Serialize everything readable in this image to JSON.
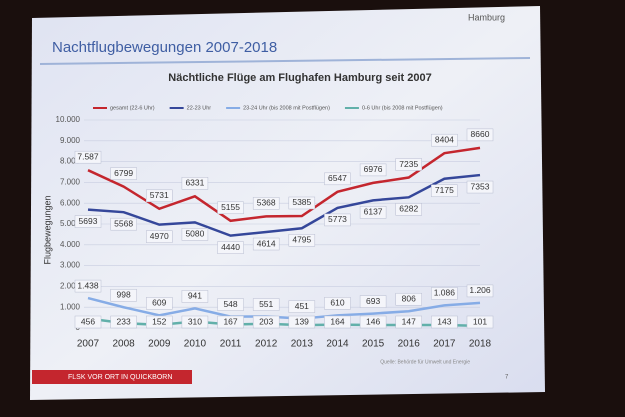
{
  "slide": {
    "heading": "Nachtflugbewegungen 2007-2018",
    "logo": "Hamburg",
    "footer": "FLSK VOR ORT IN QUICKBORN",
    "page_number": "7",
    "source": "Quelle: Behörde für Umwelt und Energie"
  },
  "chart_data": {
    "type": "line",
    "title": "Nächtliche Flüge am Flughafen Hamburg seit 2007",
    "y_label": "Flugbewegungen",
    "categories": [
      "2007",
      "2008",
      "2009",
      "2010",
      "2011",
      "2012",
      "2013",
      "2014",
      "2015",
      "2016",
      "2017",
      "2018"
    ],
    "ylim": [
      0,
      10000
    ],
    "yticks": [
      0,
      {
        "value": 1000,
        "label": "1.000"
      },
      {
        "value": 2000,
        "label": "2.000"
      },
      {
        "value": 3000,
        "label": "3.000"
      },
      {
        "value": 4000,
        "label": "4.000"
      },
      {
        "value": 5000,
        "label": "5.000"
      },
      {
        "value": 6000,
        "label": "6.000"
      },
      {
        "value": 7000,
        "label": "7.000"
      },
      {
        "value": 8000,
        "label": "8.000"
      },
      {
        "value": 9000,
        "label": "9.000"
      },
      {
        "value": 10000,
        "label": "10.000"
      }
    ],
    "legend_position": "top",
    "series": [
      {
        "name": "gesamt (22-6 Uhr)",
        "color": "#c4262e",
        "values": [
          7587,
          6799,
          5731,
          6331,
          5155,
          5368,
          5385,
          6547,
          6976,
          7235,
          8404,
          8660
        ],
        "value_labels": [
          "7.587",
          "6799",
          "5731",
          "6331",
          "5155",
          "5368",
          "5385",
          "6547",
          "6976",
          "7235",
          "8404",
          "8660"
        ]
      },
      {
        "name": "22-23 Uhr",
        "color": "#35479a",
        "values": [
          5693,
          5568,
          4970,
          5080,
          4440,
          4614,
          4795,
          5773,
          6137,
          6282,
          7175,
          7353
        ]
      },
      {
        "name": "23-24 Uhr (bis 2008 mit Postflügen)",
        "color": "#86ace6",
        "values": [
          1438,
          998,
          609,
          941,
          548,
          551,
          451,
          610,
          693,
          806,
          1086,
          1206
        ],
        "value_labels": [
          "1.438",
          "998",
          "609",
          "941",
          "548",
          "551",
          "451",
          "610",
          "693",
          "806",
          "1.086",
          "1.206"
        ]
      },
      {
        "name": "0-6 Uhr (bis 2008 mit Postflügen)",
        "color": "#62b0aa",
        "values": [
          456,
          233,
          152,
          310,
          167,
          203,
          139,
          164,
          146,
          147,
          143,
          101
        ]
      }
    ]
  }
}
